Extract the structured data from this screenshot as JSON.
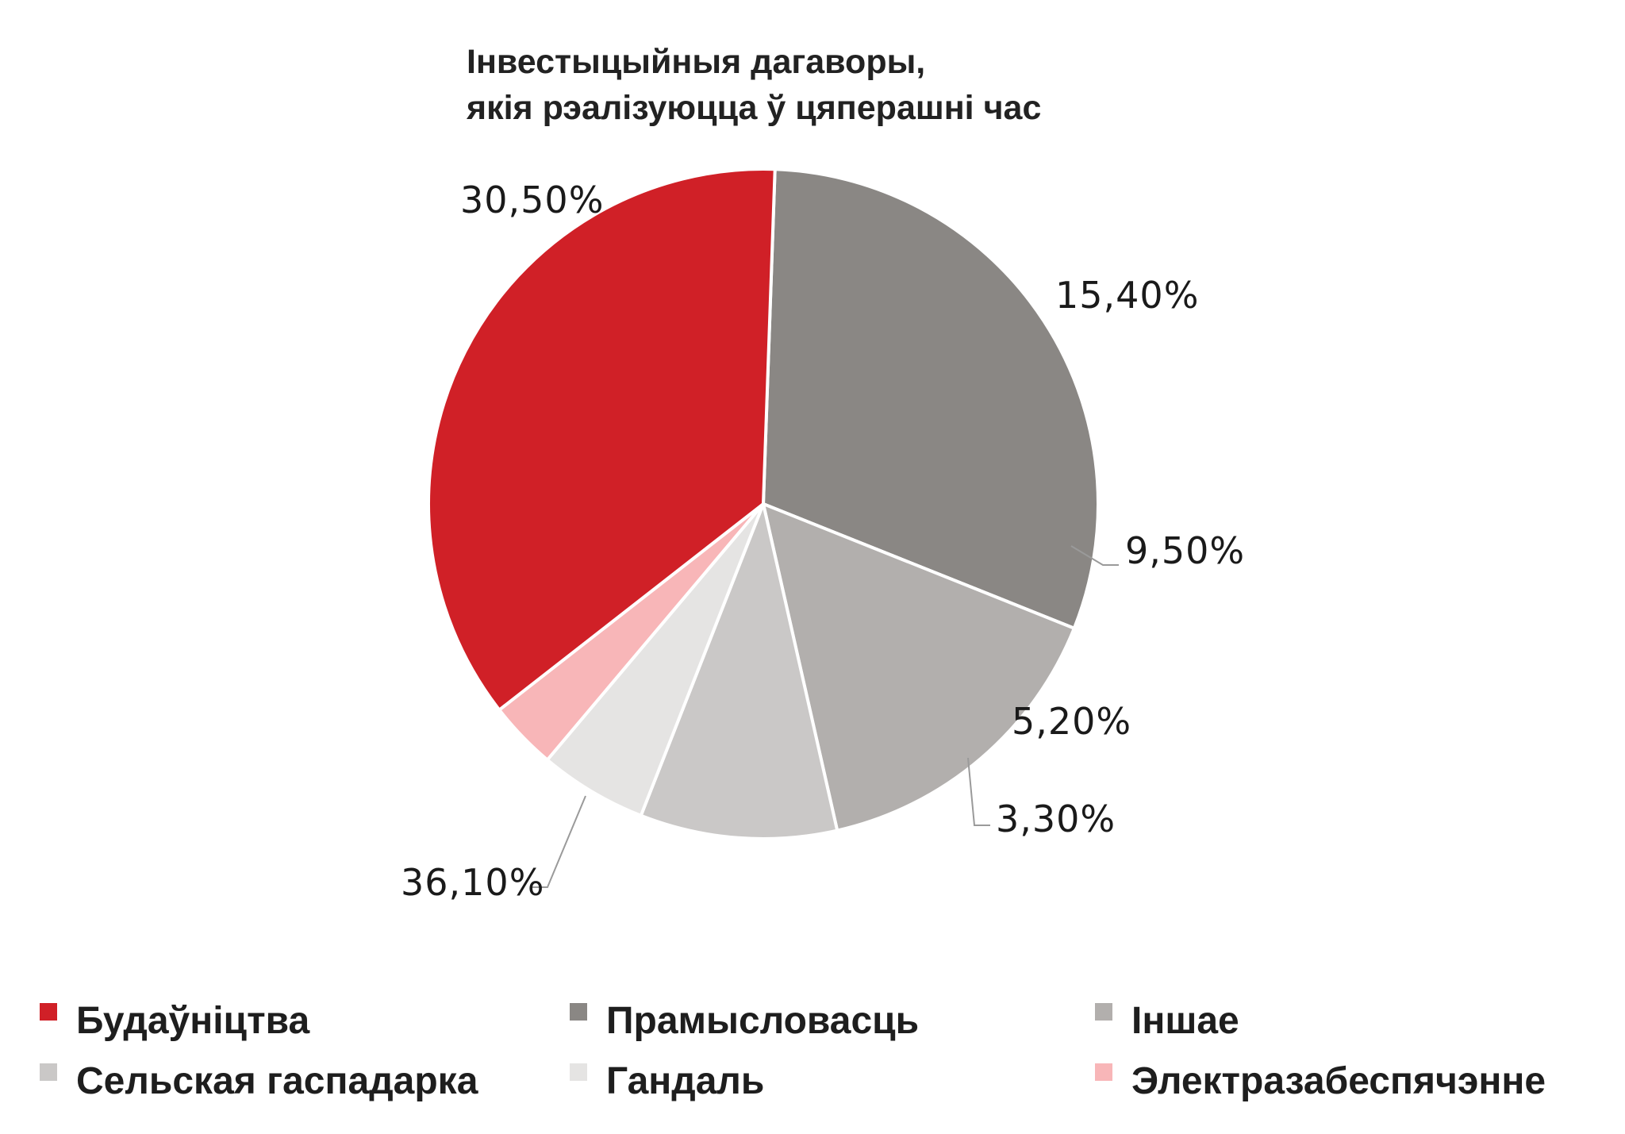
{
  "chart_data": {
    "type": "pie",
    "title_lines": [
      "Інвестыцыйныя дагаворы,",
      "якія рэалізуюцца ў цяперашні час"
    ],
    "slices": [
      {
        "label": "Прамысловасць",
        "value": 30.5,
        "value_label": "30,50%",
        "color": "#8a8784"
      },
      {
        "label": "Іншае",
        "value": 15.4,
        "value_label": "15,40%",
        "color": "#b2afad"
      },
      {
        "label": "Сельская гаспадарка",
        "value": 9.5,
        "value_label": "9,50%",
        "color": "#cac8c7"
      },
      {
        "label": "Гандаль",
        "value": 5.2,
        "value_label": "5,20%",
        "color": "#e5e4e3"
      },
      {
        "label": "Электразабеспячэнне",
        "value": 3.3,
        "value_label": "3,30%",
        "color": "#f8b6b8"
      },
      {
        "label": "Будаўніцтва",
        "value": 36.1,
        "value_label": "36,10%",
        "color": "#d02027"
      }
    ],
    "legend_order": [
      "Будаўніцтва",
      "Прамысловасць",
      "Іншае",
      "Сельская гаспадарка",
      "Гандаль",
      "Электразабеспячэнне"
    ],
    "legend_placement": "bottom"
  }
}
